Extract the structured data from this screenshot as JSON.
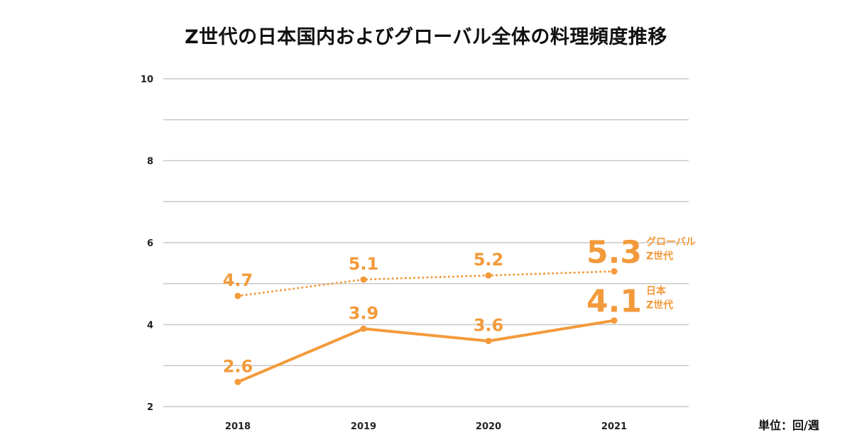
{
  "chart_data": {
    "type": "line",
    "title": "Z世代の日本国内およびグローバル全体の料理頻度推移",
    "unit_label": "単位：回/週",
    "categories": [
      "2018",
      "2019",
      "2020",
      "2021"
    ],
    "ylim": [
      2,
      10
    ],
    "yticks": [
      2,
      4,
      6,
      8,
      10
    ],
    "grid": true,
    "series": [
      {
        "name": "グローバル Z世代",
        "name_lines": [
          "グローバル",
          "Z世代"
        ],
        "style": "dotted",
        "values": [
          4.7,
          5.1,
          5.2,
          5.3
        ],
        "labels": [
          "4.7",
          "5.1",
          "5.2",
          "5.3"
        ]
      },
      {
        "name": "日本 Z世代",
        "name_lines": [
          "日本",
          "Z世代"
        ],
        "style": "solid",
        "values": [
          2.6,
          3.9,
          3.6,
          4.1
        ],
        "labels": [
          "2.6",
          "3.9",
          "3.6",
          "4.1"
        ]
      }
    ],
    "colors": {
      "line": "#f39a3b",
      "grid": "#c9c9c9"
    }
  }
}
